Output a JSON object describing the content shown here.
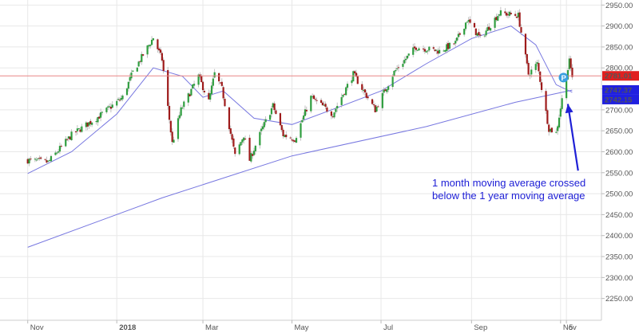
{
  "chart_data": {
    "type": "candlestick",
    "title": "",
    "xlabel": "",
    "ylabel": "",
    "ylim": [
      2198,
      2962
    ],
    "grid": true,
    "x_ticks": [
      {
        "label": "Nov",
        "date": "2017-11-01"
      },
      {
        "label": "2018",
        "date": "2018-01-01"
      },
      {
        "label": "Mar",
        "date": "2018-03-01"
      },
      {
        "label": "May",
        "date": "2018-05-01"
      },
      {
        "label": "Jul",
        "date": "2018-07-01"
      },
      {
        "label": "Sep",
        "date": "2018-09-01"
      },
      {
        "label": "Nov",
        "date": "2018-11-01"
      },
      {
        "label": "5",
        "date": "2018-11-05"
      }
    ],
    "y_ticks": [
      2250,
      2300,
      2350,
      2400,
      2450,
      2500,
      2550,
      2600,
      2650,
      2700,
      2750,
      2800,
      2850,
      2900,
      2950
    ],
    "price_lines": [
      {
        "value": 2781.01,
        "label": "2781.01",
        "color": "#e02020"
      },
      {
        "value": 2747.37,
        "label": "2747.37",
        "color": "#2020e0"
      },
      {
        "value": 2742.15,
        "label": "2742.15",
        "color": "#2020e0"
      }
    ],
    "anchors": [
      {
        "date": "2017-11-01",
        "close": 2580
      },
      {
        "date": "2017-11-15",
        "close": 2575
      },
      {
        "date": "2017-12-01",
        "close": 2640
      },
      {
        "date": "2017-12-20",
        "close": 2685
      },
      {
        "date": "2018-01-05",
        "close": 2730
      },
      {
        "date": "2018-01-12",
        "close": 2790
      },
      {
        "date": "2018-01-26",
        "close": 2872
      },
      {
        "date": "2018-02-01",
        "close": 2820
      },
      {
        "date": "2018-02-08",
        "close": 2620
      },
      {
        "date": "2018-02-14",
        "close": 2700
      },
      {
        "date": "2018-02-26",
        "close": 2780
      },
      {
        "date": "2018-03-05",
        "close": 2720
      },
      {
        "date": "2018-03-09",
        "close": 2786
      },
      {
        "date": "2018-03-14",
        "close": 2750
      },
      {
        "date": "2018-03-23",
        "close": 2590
      },
      {
        "date": "2018-03-29",
        "close": 2640
      },
      {
        "date": "2018-04-02",
        "close": 2580
      },
      {
        "date": "2018-04-10",
        "close": 2650
      },
      {
        "date": "2018-04-18",
        "close": 2710
      },
      {
        "date": "2018-04-25",
        "close": 2640
      },
      {
        "date": "2018-05-03",
        "close": 2630
      },
      {
        "date": "2018-05-14",
        "close": 2730
      },
      {
        "date": "2018-05-29",
        "close": 2690
      },
      {
        "date": "2018-06-12",
        "close": 2785
      },
      {
        "date": "2018-06-27",
        "close": 2700
      },
      {
        "date": "2018-07-10",
        "close": 2790
      },
      {
        "date": "2018-07-25",
        "close": 2850
      },
      {
        "date": "2018-08-10",
        "close": 2840
      },
      {
        "date": "2018-08-21",
        "close": 2860
      },
      {
        "date": "2018-08-29",
        "close": 2915
      },
      {
        "date": "2018-09-07",
        "close": 2870
      },
      {
        "date": "2018-09-20",
        "close": 2931
      },
      {
        "date": "2018-10-03",
        "close": 2925
      },
      {
        "date": "2018-10-10",
        "close": 2785
      },
      {
        "date": "2018-10-16",
        "close": 2810
      },
      {
        "date": "2018-10-24",
        "close": 2655
      },
      {
        "date": "2018-10-29",
        "close": 2645
      },
      {
        "date": "2018-11-02",
        "close": 2725
      },
      {
        "date": "2018-11-07",
        "close": 2815
      },
      {
        "date": "2018-11-09",
        "close": 2781
      }
    ],
    "ma_1_month": [
      {
        "date": "2017-11-01",
        "value": 2548
      },
      {
        "date": "2017-12-01",
        "value": 2600
      },
      {
        "date": "2018-01-01",
        "value": 2690
      },
      {
        "date": "2018-01-26",
        "value": 2800
      },
      {
        "date": "2018-02-15",
        "value": 2780
      },
      {
        "date": "2018-03-01",
        "value": 2730
      },
      {
        "date": "2018-03-15",
        "value": 2745
      },
      {
        "date": "2018-04-05",
        "value": 2680
      },
      {
        "date": "2018-05-01",
        "value": 2665
      },
      {
        "date": "2018-06-01",
        "value": 2705
      },
      {
        "date": "2018-07-01",
        "value": 2745
      },
      {
        "date": "2018-08-01",
        "value": 2810
      },
      {
        "date": "2018-09-01",
        "value": 2870
      },
      {
        "date": "2018-09-28",
        "value": 2900
      },
      {
        "date": "2018-10-15",
        "value": 2855
      },
      {
        "date": "2018-10-29",
        "value": 2760
      },
      {
        "date": "2018-11-09",
        "value": 2742
      }
    ],
    "ma_1_year": [
      {
        "date": "2017-11-01",
        "value": 2372
      },
      {
        "date": "2018-02-01",
        "value": 2490
      },
      {
        "date": "2018-05-01",
        "value": 2590
      },
      {
        "date": "2018-08-01",
        "value": 2660
      },
      {
        "date": "2018-10-01",
        "value": 2718
      },
      {
        "date": "2018-11-09",
        "value": 2747
      }
    ],
    "annotation": {
      "lines": [
        "1 month moving average crossed",
        "below the 1 year moving average"
      ],
      "arrow_from": {
        "date": "2018-11-13",
        "value": 2555
      },
      "arrow_to": {
        "date": "2018-11-06",
        "value": 2714
      }
    },
    "marker": {
      "label": "P",
      "date": "2018-11-03",
      "value": 2777,
      "color": "#3b9fe0"
    },
    "colors": {
      "up": "#2f9e3f",
      "down": "#9e1b1b",
      "ma": "#7777e0",
      "grid": "#e8e8e8",
      "axis_text": "#555555",
      "annotation": "#1f20d6"
    }
  }
}
